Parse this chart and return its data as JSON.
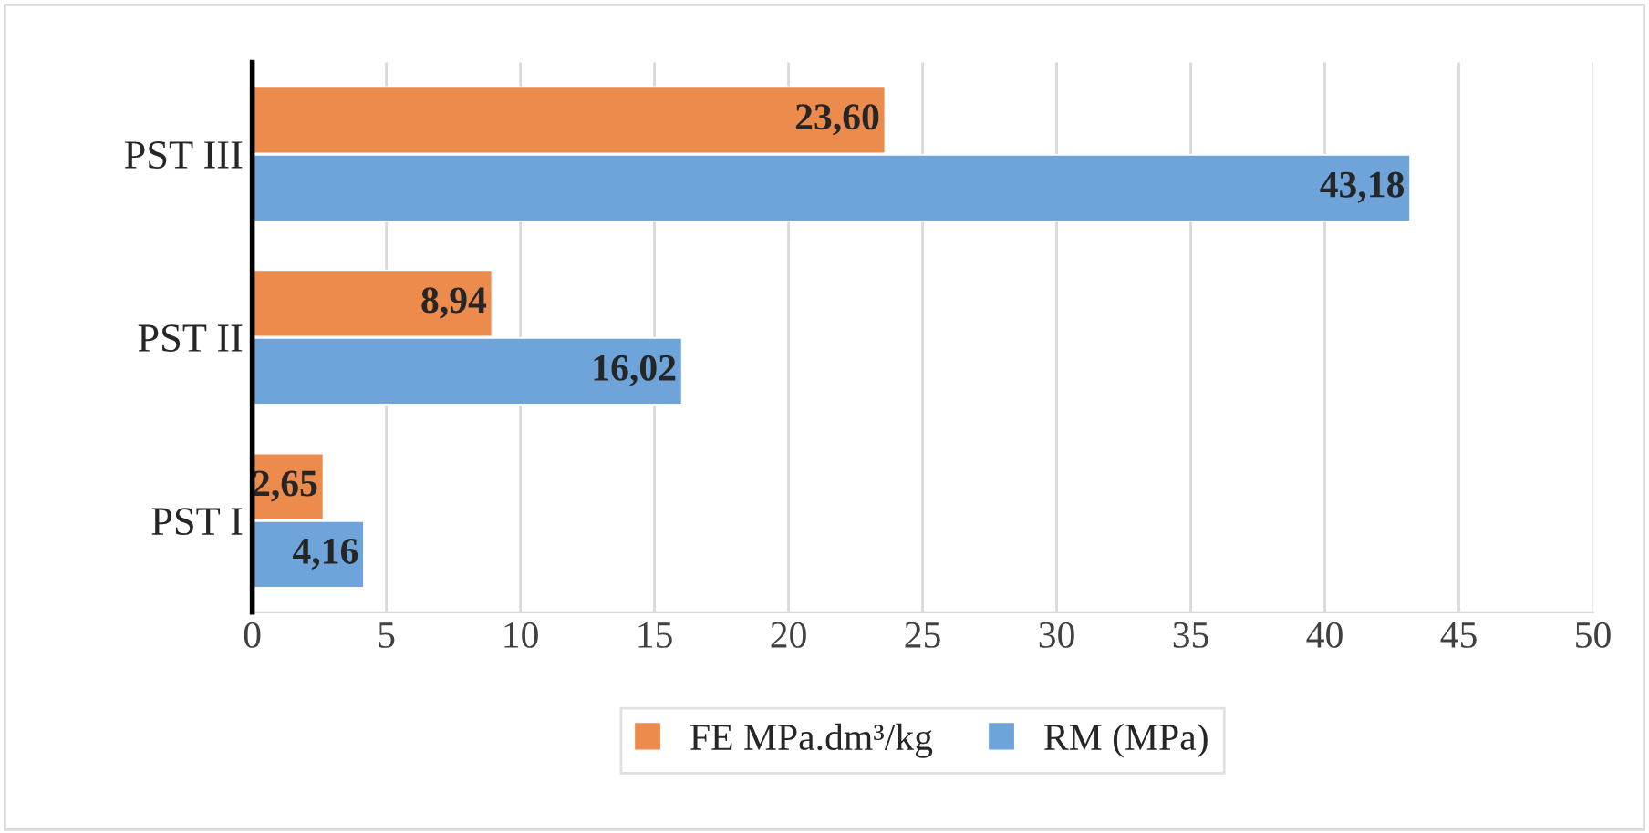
{
  "chart_data": {
    "type": "bar",
    "orientation": "horizontal",
    "categories": [
      "PST III",
      "PST II",
      "PST I"
    ],
    "series": [
      {
        "name": "FE MPa.dm³/kg",
        "color": "#ed8b4d",
        "values": [
          23.6,
          8.94,
          2.65
        ],
        "value_labels": [
          "23,60",
          "8,94",
          "2,65"
        ]
      },
      {
        "name": "RM (MPa)",
        "color": "#6fa4da",
        "values": [
          43.18,
          16.02,
          4.16
        ],
        "value_labels": [
          "43,18",
          "16,02",
          "4,16"
        ]
      }
    ],
    "xlim": [
      0,
      50
    ],
    "xticks": [
      0,
      5,
      10,
      15,
      20,
      25,
      30,
      35,
      40,
      45,
      50
    ],
    "grid": "x",
    "legend": "bottom"
  }
}
